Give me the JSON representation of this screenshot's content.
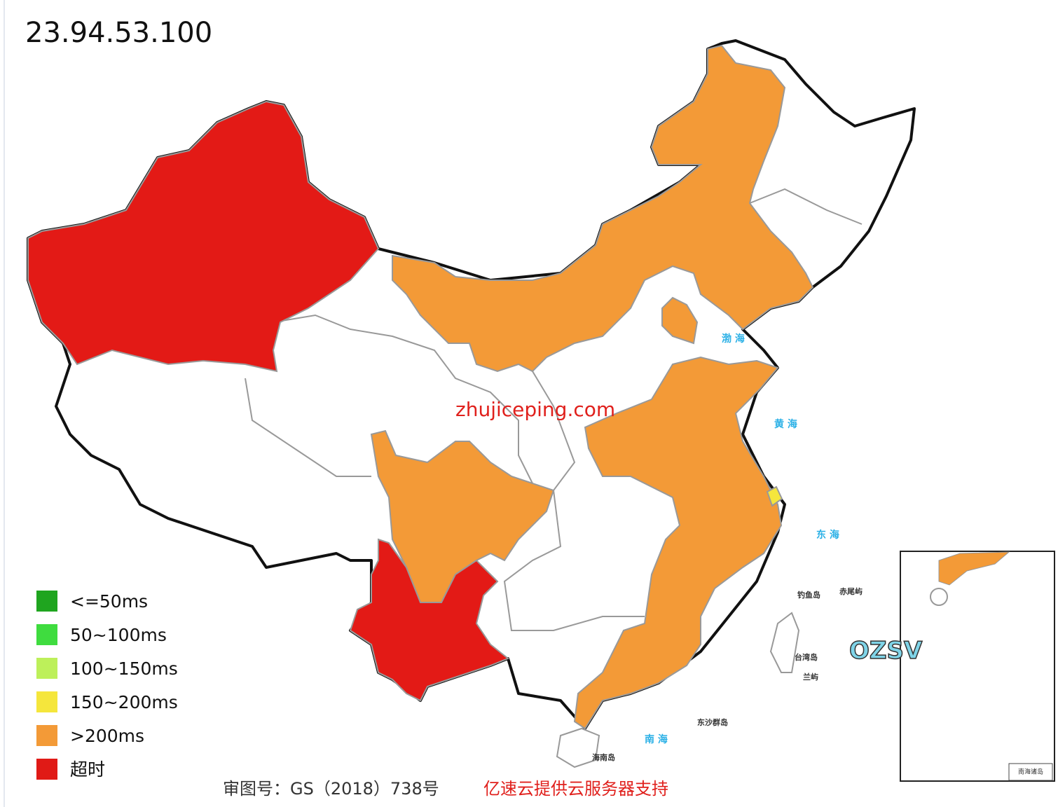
{
  "header": {
    "title": "23.94.53.100"
  },
  "legend": [
    {
      "label": "<=50ms",
      "color": "#1fa51f"
    },
    {
      "label": "50~100ms",
      "color": "#3fdc3f"
    },
    {
      "label": "100~150ms",
      "color": "#bdf05a"
    },
    {
      "label": "150~200ms",
      "color": "#f5e63c"
    },
    {
      "label": ">200ms",
      "color": "#f39a37"
    },
    {
      "label": "超时",
      "color": "#e01a16"
    }
  ],
  "watermark": "zhujiceping.com",
  "logo": "OZSV",
  "map_labels": {
    "bohai": "渤 海",
    "huanghai": "黄 海",
    "donghai": "东 海",
    "nanhai": "南 海",
    "diaoyu": "钓鱼岛",
    "chiwei": "赤尾屿",
    "taiwan": "台湾岛",
    "lanyu": "兰屿",
    "dongsha": "东沙群岛",
    "hainan": "海南岛",
    "nanhai_islands": "南海诸岛"
  },
  "footer": {
    "approval": "审图号：GS（2018）738号",
    "sponsor": "亿速云提供云服务器支持"
  }
}
